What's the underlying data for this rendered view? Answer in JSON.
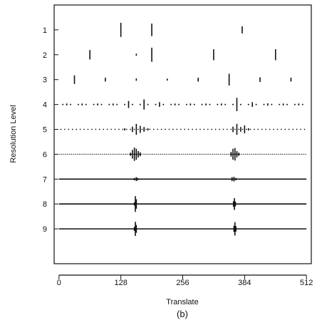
{
  "chart_data": {
    "type": "scatter",
    "caption": "(b)",
    "xlabel": "Translate",
    "ylabel": "Resolution Level",
    "xlim": [
      -10,
      522
    ],
    "ylim": [
      0,
      10.4
    ],
    "x_ticks": [
      0,
      128,
      256,
      384,
      512
    ],
    "y_ticks": [
      1,
      2,
      3,
      4,
      5,
      6,
      7,
      8,
      9
    ],
    "levels": [
      {
        "level": 1,
        "style": "spikes",
        "coefficients": [
          [
            128,
            0.9
          ],
          [
            192,
            0.8
          ],
          [
            379,
            0.45
          ]
        ]
      },
      {
        "level": 2,
        "style": "spikes",
        "coefficients": [
          [
            64,
            0.6
          ],
          [
            160,
            0.1
          ],
          [
            192,
            0.9
          ],
          [
            320,
            0.7
          ],
          [
            448,
            0.7
          ]
        ]
      },
      {
        "level": 3,
        "style": "spikes",
        "coefficients": [
          [
            32,
            0.55
          ],
          [
            96,
            0.25
          ],
          [
            160,
            0.15
          ],
          [
            224,
            0.05
          ],
          [
            288,
            0.25
          ],
          [
            352,
            0.75
          ],
          [
            416,
            0.3
          ],
          [
            480,
            0.25
          ]
        ]
      },
      {
        "level": 4,
        "style": "dots",
        "spacing": 16,
        "coefficients": [
          [
            16,
            0.05
          ],
          [
            48,
            0.05
          ],
          [
            80,
            0.05
          ],
          [
            112,
            0.05
          ],
          [
            144,
            0.45
          ],
          [
            176,
            0.65
          ],
          [
            208,
            0.3
          ],
          [
            240,
            0.05
          ],
          [
            272,
            0.05
          ],
          [
            304,
            0.05
          ],
          [
            336,
            0.05
          ],
          [
            368,
            0.85
          ],
          [
            400,
            0.3
          ],
          [
            432,
            0.15
          ],
          [
            464,
            0.05
          ],
          [
            496,
            0.05
          ]
        ]
      },
      {
        "level": 5,
        "style": "dots",
        "spacing": 8,
        "coefficients": [
          [
            136,
            0.15
          ],
          [
            152,
            0.35
          ],
          [
            160,
            0.7
          ],
          [
            168,
            0.45
          ],
          [
            176,
            0.3
          ],
          [
            184,
            0.15
          ],
          [
            360,
            0.35
          ],
          [
            368,
            0.7
          ],
          [
            376,
            0.3
          ],
          [
            384,
            0.5
          ],
          [
            392,
            0.15
          ]
        ]
      },
      {
        "level": 6,
        "style": "dots",
        "spacing": 4,
        "coefficients": [
          [
            148,
            0.2
          ],
          [
            152,
            0.55
          ],
          [
            156,
            0.85
          ],
          [
            160,
            0.7
          ],
          [
            164,
            0.4
          ],
          [
            168,
            0.25
          ],
          [
            356,
            0.3
          ],
          [
            360,
            0.7
          ],
          [
            364,
            0.8
          ],
          [
            368,
            0.4
          ],
          [
            372,
            0.2
          ]
        ]
      },
      {
        "level": 7,
        "style": "line",
        "coefficients": [
          [
            156,
            0.15
          ],
          [
            160,
            0.25
          ],
          [
            163,
            0.15
          ],
          [
            358,
            0.25
          ],
          [
            362,
            0.3
          ],
          [
            366,
            0.15
          ]
        ]
      },
      {
        "level": 8,
        "style": "line",
        "coefficients": [
          [
            156,
            0.2
          ],
          [
            158,
            1.0
          ],
          [
            160,
            0.6
          ],
          [
            361,
            0.35
          ],
          [
            363,
            0.75
          ],
          [
            365,
            0.3
          ]
        ]
      },
      {
        "level": 9,
        "style": "line",
        "coefficients": [
          [
            156,
            0.25
          ],
          [
            158,
            0.9
          ],
          [
            160,
            0.5
          ],
          [
            362,
            0.4
          ],
          [
            364,
            0.85
          ],
          [
            366,
            0.35
          ]
        ]
      }
    ]
  }
}
